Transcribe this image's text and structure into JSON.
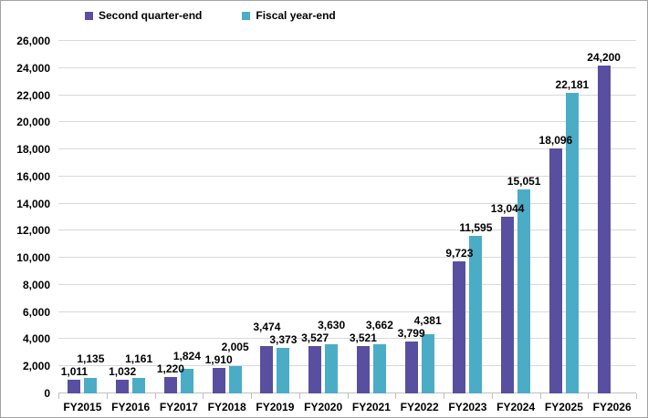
{
  "chart_data": {
    "type": "bar",
    "title": "",
    "xlabel": "",
    "ylabel": "",
    "categories": [
      "FY2015",
      "FY2016",
      "FY2017",
      "FY2018",
      "FY2019",
      "FY2020",
      "FY2021",
      "FY2022",
      "FY2023",
      "FY2024",
      "FY2025",
      "FY2026"
    ],
    "series": [
      {
        "name": "Second quarter-end",
        "color": "#584FA0",
        "values": [
          1011,
          1032,
          1220,
          1910,
          3474,
          3527,
          3521,
          3799,
          9723,
          13044,
          18096,
          24200
        ],
        "labels": [
          "1,011",
          "1,032",
          "1,220",
          "1,910",
          "3,474",
          "3,527",
          "3,521",
          "3,799",
          "9,723",
          "13,044",
          "18,096",
          "24,200"
        ]
      },
      {
        "name": "Fiscal year-end",
        "color": "#4BACC6",
        "values": [
          1135,
          1161,
          1824,
          2005,
          3373,
          3630,
          3662,
          4381,
          11595,
          15051,
          22181,
          null
        ],
        "labels": [
          "1,135",
          "1,161",
          "1,824",
          "2,005",
          "3,373",
          "3,630",
          "3,662",
          "4,381",
          "11,595",
          "15,051",
          "22,181",
          null
        ]
      }
    ],
    "ylim": [
      0,
      26000
    ],
    "ytick_step": 2000,
    "ytick_labels": [
      "0",
      "2,000",
      "4,000",
      "6,000",
      "8,000",
      "10,000",
      "12,000",
      "14,000",
      "16,000",
      "18,000",
      "20,000",
      "22,000",
      "24,000",
      "26,000"
    ],
    "grid": true,
    "legend_position": "top-left",
    "colors": {
      "gridline": "#D9D9D9",
      "axis_line": "#BFBFBF",
      "text": "#000000",
      "background": "#FFFFFF",
      "frame_border": "#A3A3A3"
    }
  }
}
